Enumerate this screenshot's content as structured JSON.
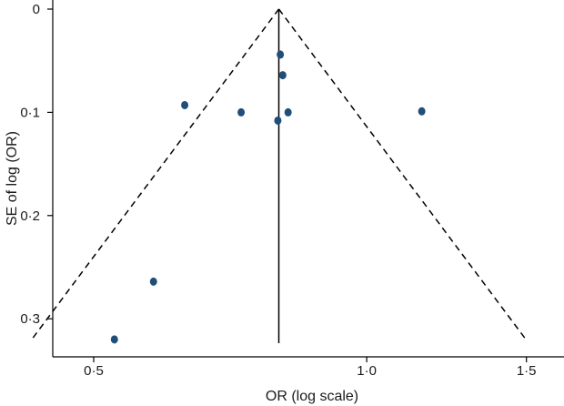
{
  "chart_data": {
    "type": "scatter",
    "title": "",
    "xlabel": "OR (log scale)",
    "ylabel": "SE of log (OR)",
    "x_scale": "log",
    "y_inverted": true,
    "xlim": [
      0.46,
      1.6
    ],
    "ylim": [
      0,
      0.32
    ],
    "x_ticks": [
      {
        "value": 0.5,
        "label": "0·5"
      },
      {
        "value": 1.0,
        "label": "1·0"
      },
      {
        "value": 1.5,
        "label": "1·5"
      }
    ],
    "y_ticks": [
      {
        "value": 0,
        "label": "0"
      },
      {
        "value": 0.1,
        "label": "0·1"
      },
      {
        "value": 0.2,
        "label": "0·2"
      },
      {
        "value": 0.3,
        "label": "0·3"
      }
    ],
    "pooled_or": 0.8,
    "pseudo_ci_multiplier": 1.96,
    "grid": false,
    "marker_color": "#1f4e79",
    "line_color": "#000000",
    "points": [
      {
        "or": 0.803,
        "se": 0.044
      },
      {
        "or": 0.808,
        "se": 0.064
      },
      {
        "or": 0.63,
        "se": 0.093
      },
      {
        "or": 0.727,
        "se": 0.1
      },
      {
        "or": 0.819,
        "se": 0.1
      },
      {
        "or": 1.15,
        "se": 0.099
      },
      {
        "or": 0.798,
        "se": 0.108
      },
      {
        "or": 0.582,
        "se": 0.264
      },
      {
        "or": 0.527,
        "se": 0.32
      }
    ]
  }
}
